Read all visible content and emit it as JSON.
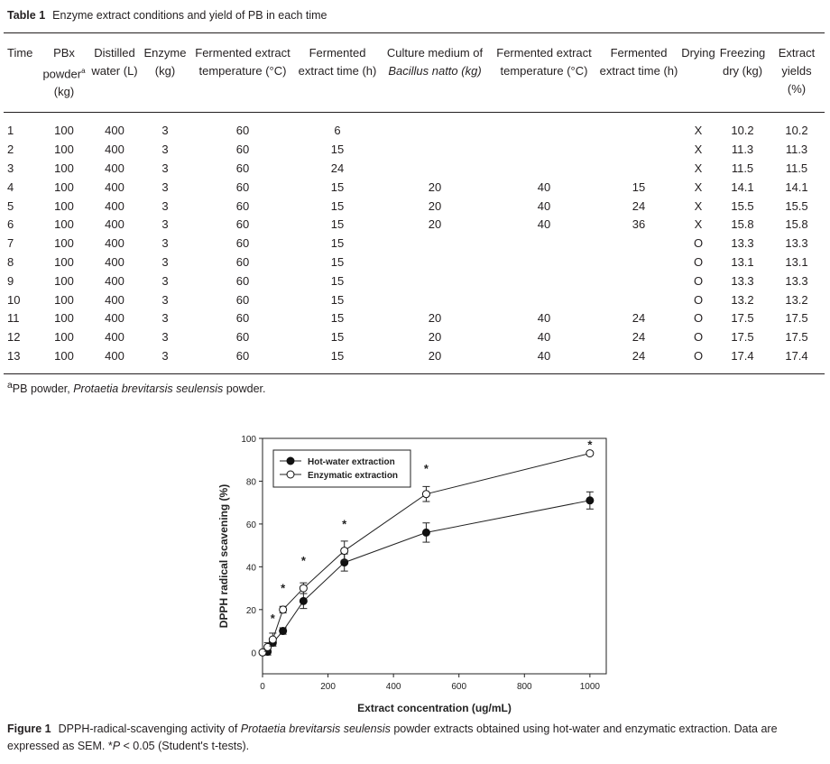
{
  "table": {
    "label": "Table 1",
    "title": "Enzyme extract conditions and yield of PB in each time",
    "headers": [
      [
        "Time"
      ],
      [
        "PBx",
        "powder",
        "(kg)"
      ],
      [
        "Distilled",
        "water (L)"
      ],
      [
        "Enzyme",
        "(kg)"
      ],
      [
        "Fermented extract",
        "temperature (°C)"
      ],
      [
        "Fermented",
        "extract time (h)"
      ],
      [
        "Culture medium of",
        "Bacillus natto (kg)"
      ],
      [
        "Fermented extract",
        "temperature (°C)"
      ],
      [
        "Fermented",
        "extract time (h)"
      ],
      [
        "Drying"
      ],
      [
        "Freezing",
        "dry (kg)"
      ],
      [
        "Extract",
        "yields",
        "(%)"
      ]
    ],
    "rows": [
      [
        "1",
        "100",
        "400",
        "3",
        "60",
        "6",
        "",
        "",
        "",
        "X",
        "10.2",
        "10.2"
      ],
      [
        "2",
        "100",
        "400",
        "3",
        "60",
        "15",
        "",
        "",
        "",
        "X",
        "11.3",
        "11.3"
      ],
      [
        "3",
        "100",
        "400",
        "3",
        "60",
        "24",
        "",
        "",
        "",
        "X",
        "11.5",
        "11.5"
      ],
      [
        "4",
        "100",
        "400",
        "3",
        "60",
        "15",
        "20",
        "40",
        "15",
        "X",
        "14.1",
        "14.1"
      ],
      [
        "5",
        "100",
        "400",
        "3",
        "60",
        "15",
        "20",
        "40",
        "24",
        "X",
        "15.5",
        "15.5"
      ],
      [
        "6",
        "100",
        "400",
        "3",
        "60",
        "15",
        "20",
        "40",
        "36",
        "X",
        "15.8",
        "15.8"
      ],
      [
        "7",
        "100",
        "400",
        "3",
        "60",
        "15",
        "",
        "",
        "",
        "O",
        "13.3",
        "13.3"
      ],
      [
        "8",
        "100",
        "400",
        "3",
        "60",
        "15",
        "",
        "",
        "",
        "O",
        "13.1",
        "13.1"
      ],
      [
        "9",
        "100",
        "400",
        "3",
        "60",
        "15",
        "",
        "",
        "",
        "O",
        "13.3",
        "13.3"
      ],
      [
        "10",
        "100",
        "400",
        "3",
        "60",
        "15",
        "",
        "",
        "",
        "O",
        "13.2",
        "13.2"
      ],
      [
        "11",
        "100",
        "400",
        "3",
        "60",
        "15",
        "20",
        "40",
        "24",
        "O",
        "17.5",
        "17.5"
      ],
      [
        "12",
        "100",
        "400",
        "3",
        "60",
        "15",
        "20",
        "40",
        "24",
        "O",
        "17.5",
        "17.5"
      ],
      [
        "13",
        "100",
        "400",
        "3",
        "60",
        "15",
        "20",
        "40",
        "24",
        "O",
        "17.4",
        "17.4"
      ]
    ],
    "footnote": {
      "mark": "a",
      "text1": "PB powder, ",
      "italic": "Protaetia brevitarsis seulensis",
      "text2": " powder."
    }
  },
  "chart_data": {
    "type": "line",
    "xlabel": "Extract concentration (ug/mL)",
    "ylabel": "DPPH radical scavening (%)",
    "xlim": [
      0,
      1050
    ],
    "ylim": [
      -10,
      100
    ],
    "xticks": [
      0,
      200,
      400,
      600,
      800,
      1000
    ],
    "yticks": [
      0,
      20,
      40,
      60,
      80,
      100
    ],
    "legend_position": "top-left",
    "series": [
      {
        "name": "Hot-water extraction",
        "marker": "filled-circle",
        "x": [
          15.6,
          31.25,
          62.5,
          125,
          250,
          500,
          1000
        ],
        "y": [
          0.3,
          4.5,
          10,
          24,
          42,
          56,
          71
        ],
        "err": [
          1.5,
          1.5,
          1.5,
          3.5,
          4,
          4.5,
          4
        ]
      },
      {
        "name": "Enzymatic extraction",
        "marker": "open-circle",
        "x": [
          0,
          15.6,
          31.25,
          62.5,
          125,
          250,
          500,
          1000
        ],
        "y": [
          0,
          2.5,
          6,
          20,
          30,
          47.5,
          74,
          93
        ],
        "err": [
          0,
          2,
          3,
          1.5,
          2.5,
          4.5,
          3.5,
          0
        ]
      }
    ],
    "significance": {
      "symbol": "*",
      "x": [
        31.25,
        62.5,
        125,
        250,
        500,
        1000
      ],
      "y": [
        17,
        31,
        44,
        61,
        87,
        98
      ]
    }
  },
  "caption": {
    "label": "Figure 1",
    "t1": "DPPH-radical-scavenging activity of ",
    "italic": "Protaetia brevitarsis seulensis",
    "t2": " powder extracts obtained using hot-water and enzymatic extraction. Data are expressed as SEM. *",
    "p": "P",
    "t3": " < 0.05 (Student's t-tests)."
  }
}
